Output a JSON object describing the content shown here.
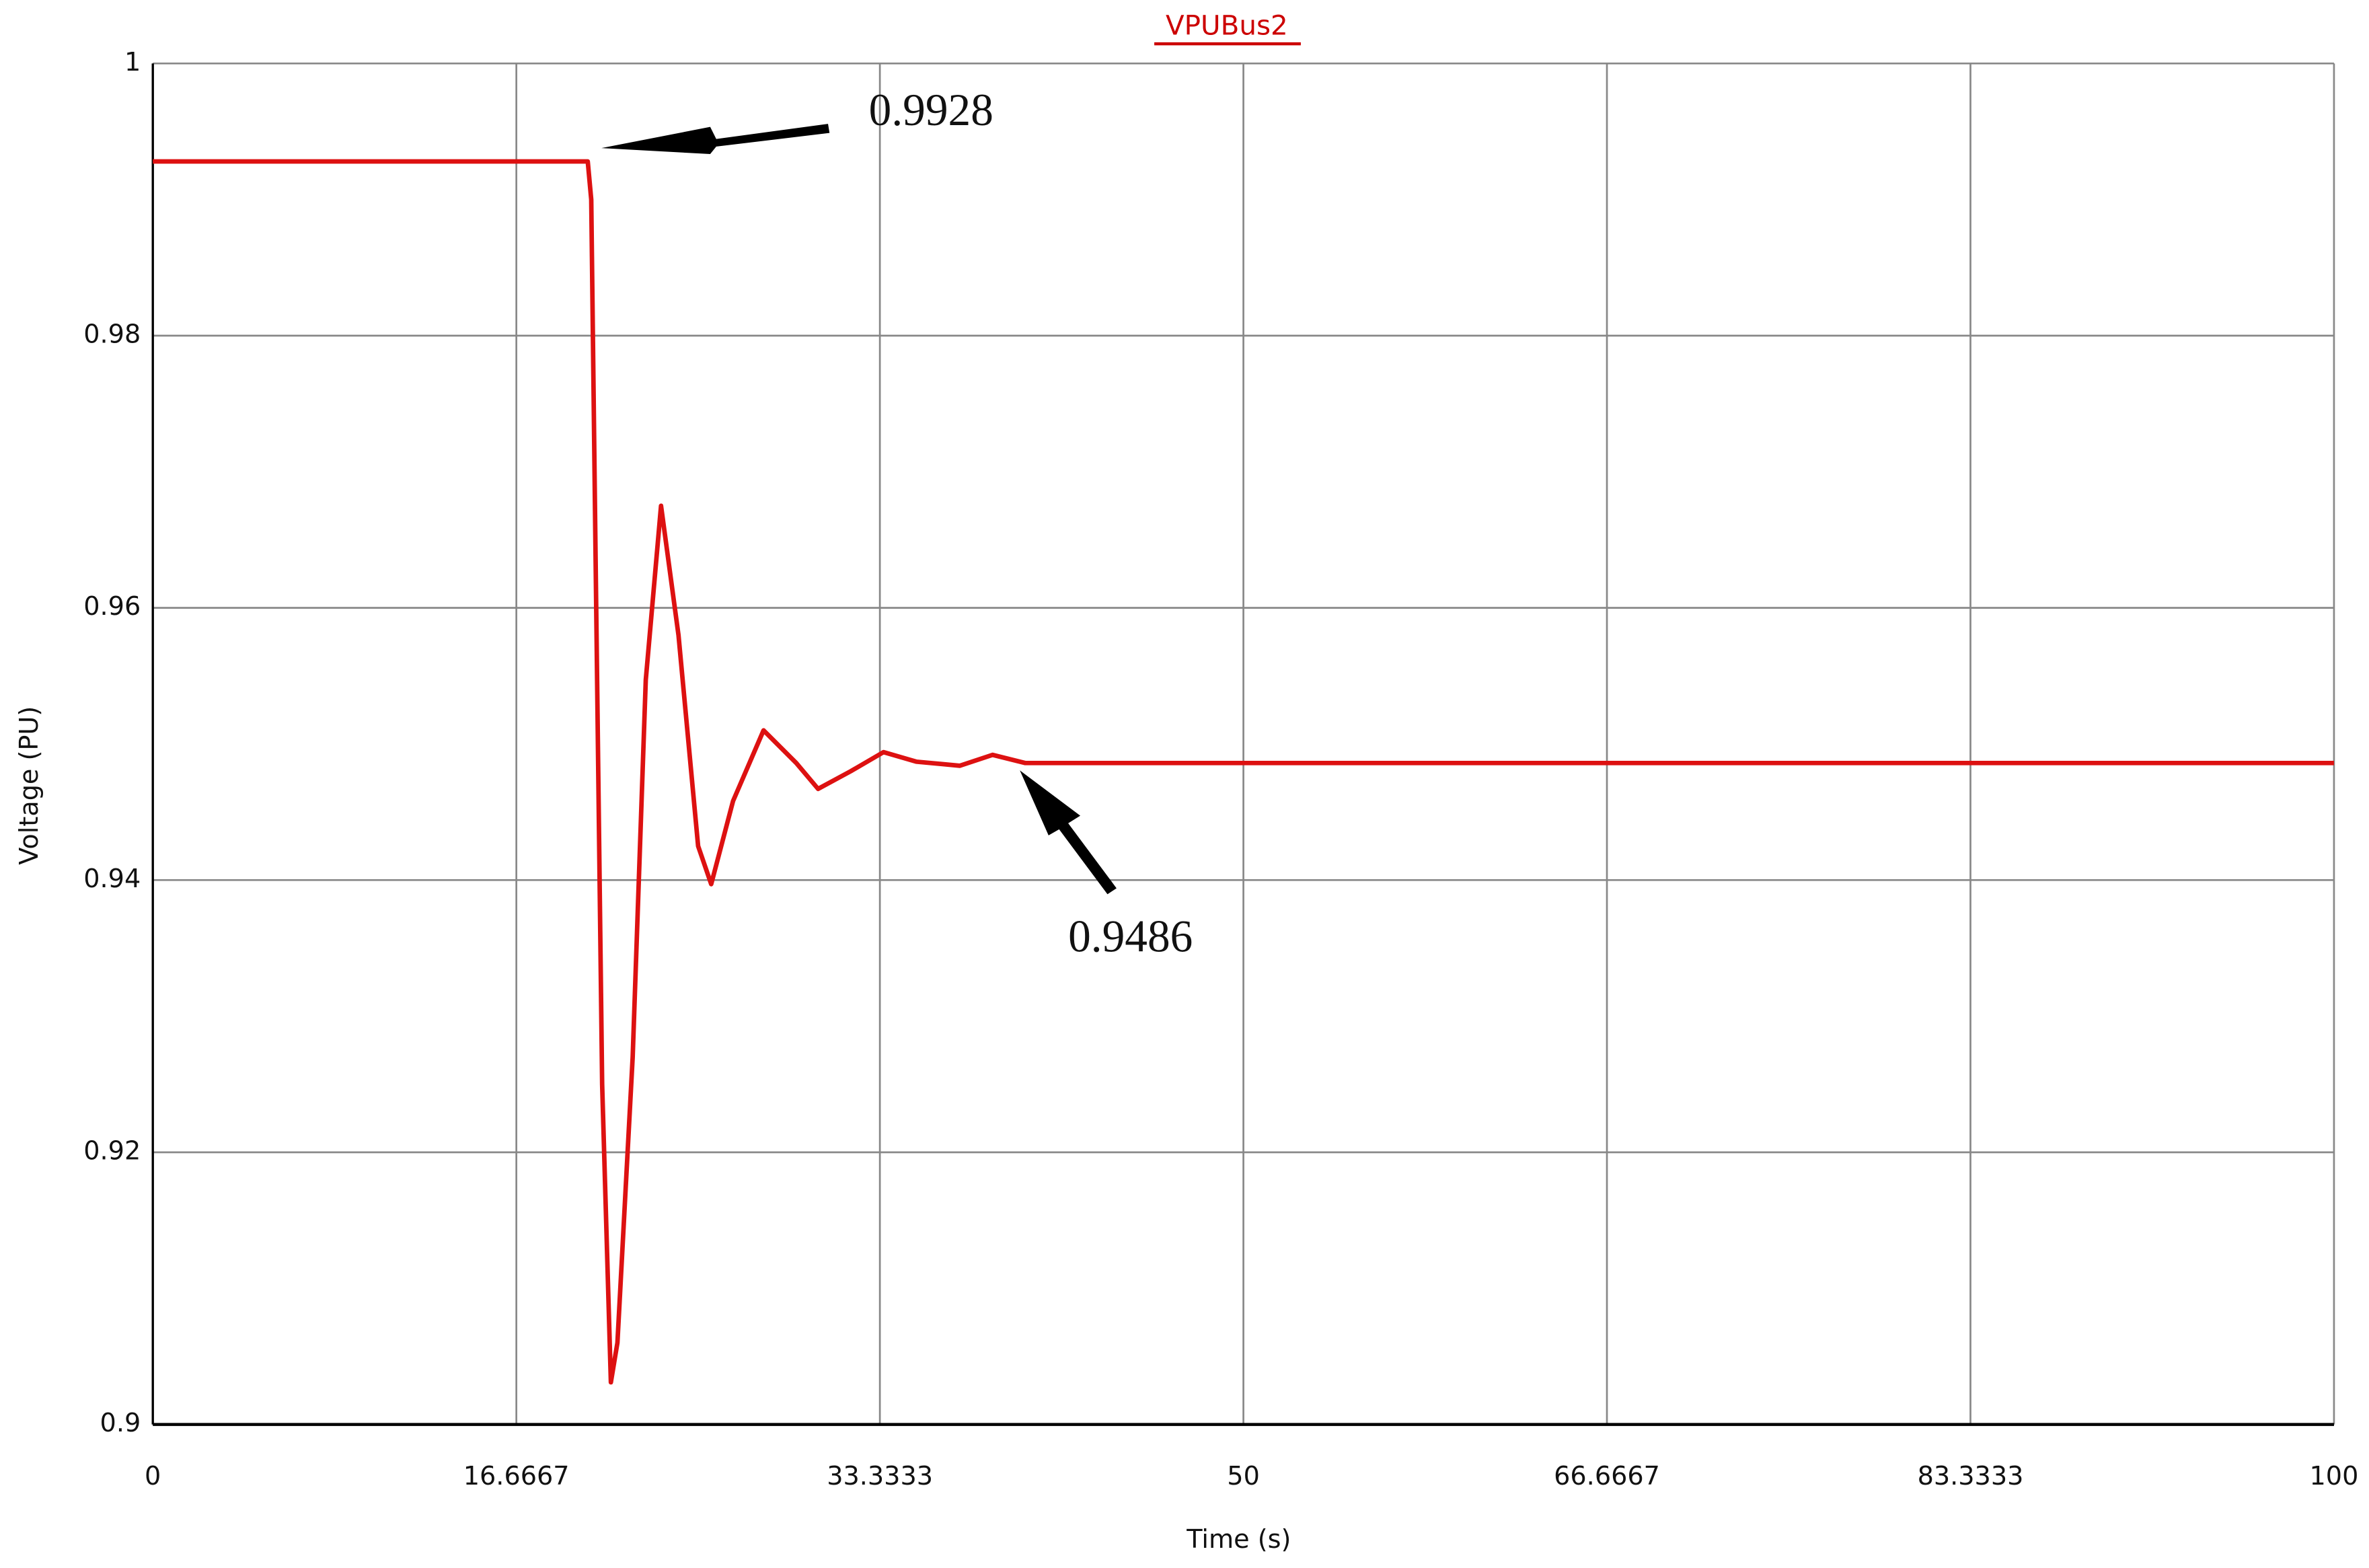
{
  "chart_data": {
    "type": "line",
    "title": "VPUBus2",
    "x_label": "Time (s)",
    "y_label": "Voltage (PU)",
    "xlim": [
      0,
      100
    ],
    "xticks": [
      0,
      16.6667,
      33.3333,
      50,
      66.6667,
      83.3333,
      100
    ],
    "ylim": [
      0.9,
      1
    ],
    "yticks": [
      0.9,
      0.92,
      0.94,
      0.96,
      0.98,
      1
    ],
    "grid": true,
    "x": [
      0,
      19.94,
      20.1,
      20.3,
      20.6,
      21,
      21.3,
      22,
      22.6,
      23.3,
      24.1,
      25,
      25.6,
      26.6,
      28,
      29.5,
      30.5,
      32,
      33.5,
      35,
      37,
      38.5,
      40,
      100
    ],
    "series": [
      {
        "name": "VPUBus2",
        "color": "#dd1111",
        "values": [
          0.9928,
          0.9928,
          0.99,
          0.9636,
          0.925,
          0.9031,
          0.906,
          0.927,
          0.9547,
          0.9675,
          0.958,
          0.9425,
          0.9397,
          0.9458,
          0.951,
          0.9486,
          0.9467,
          0.948,
          0.9494,
          0.9487,
          0.9484,
          0.9492,
          0.9486,
          0.9486
        ]
      }
    ],
    "annotations": [
      "0.9928",
      "0.9486"
    ]
  }
}
